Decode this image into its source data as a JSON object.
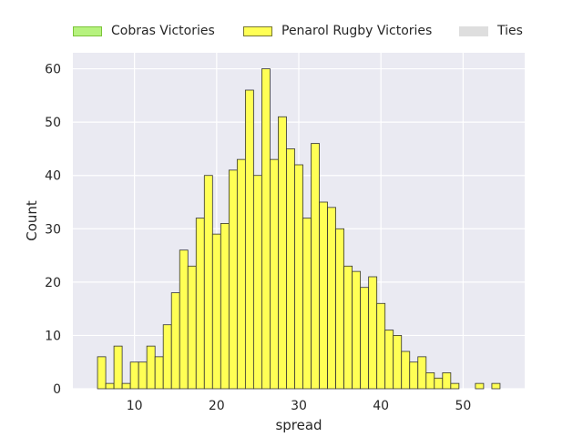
{
  "chart_data": {
    "type": "bar",
    "xlabel": "spread",
    "ylabel": "Count",
    "xlim": [
      2.5,
      57.5
    ],
    "ylim": [
      0,
      63
    ],
    "xticks": [
      10,
      20,
      30,
      40,
      50
    ],
    "yticks": [
      0,
      10,
      20,
      30,
      40,
      50,
      60
    ],
    "grid": true,
    "legend_position": "top",
    "bin_width": 1,
    "series": [
      {
        "name": "Cobras Victories",
        "color": "#b6f27e",
        "edge": "#7cc43a",
        "bins": [],
        "counts": []
      },
      {
        "name": "Penarol Rugby Victories",
        "color": "#ffff55",
        "edge": "#333333",
        "bins": [
          6,
          7,
          8,
          9,
          10,
          11,
          12,
          13,
          14,
          15,
          16,
          17,
          18,
          19,
          20,
          21,
          22,
          23,
          24,
          25,
          26,
          27,
          28,
          29,
          30,
          31,
          32,
          33,
          34,
          35,
          36,
          37,
          38,
          39,
          40,
          41,
          42,
          43,
          44,
          45,
          46,
          47,
          48,
          49,
          50,
          51,
          52,
          53,
          54,
          55
        ],
        "counts": [
          6,
          1,
          8,
          1,
          5,
          5,
          8,
          6,
          12,
          18,
          26,
          23,
          32,
          40,
          29,
          31,
          41,
          43,
          56,
          40,
          60,
          43,
          51,
          45,
          42,
          32,
          46,
          35,
          34,
          30,
          23,
          22,
          19,
          21,
          16,
          11,
          10,
          7,
          5,
          6,
          3,
          2,
          3,
          1,
          0,
          0,
          1,
          0,
          1,
          0
        ]
      },
      {
        "name": "Ties",
        "color": "#dedede",
        "edge": "#dedede",
        "bins": [],
        "counts": []
      }
    ]
  }
}
